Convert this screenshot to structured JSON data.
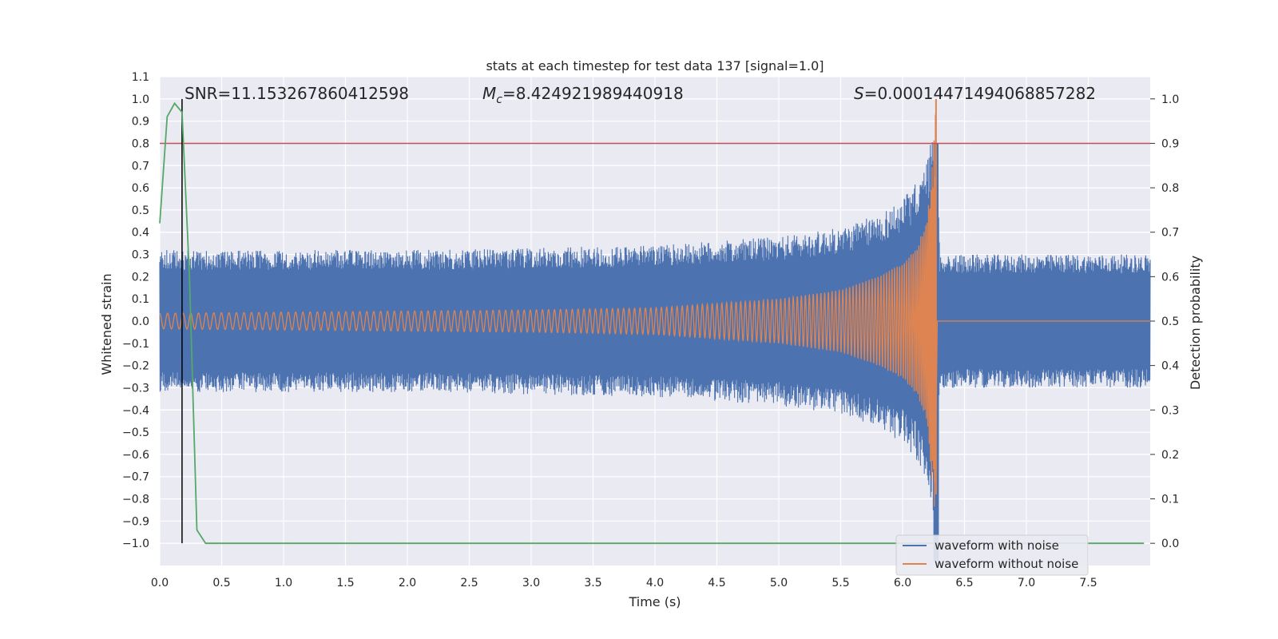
{
  "chart_data": {
    "type": "line",
    "title": "stats at each timestep for test data 137 [signal=1.0]",
    "xlabel": "Time (s)",
    "ylabel": "Whitened strain",
    "y2label": "Detection probability",
    "xlim": [
      0.0,
      8.0
    ],
    "ylim": [
      -1.1,
      1.1
    ],
    "y2lim": [
      -0.05,
      1.05
    ],
    "xticks": [
      "0.0",
      "0.5",
      "1.0",
      "1.5",
      "2.0",
      "2.5",
      "3.0",
      "3.5",
      "4.0",
      "4.5",
      "5.0",
      "5.5",
      "6.0",
      "6.5",
      "7.0",
      "7.5"
    ],
    "yticks": [
      "1.1",
      "1.0",
      "0.9",
      "0.8",
      "0.7",
      "0.6",
      "0.5",
      "0.4",
      "0.3",
      "0.2",
      "0.1",
      "0.0",
      "−0.1",
      "−0.2",
      "−0.3",
      "−0.4",
      "−0.5",
      "−0.6",
      "−0.7",
      "−0.8",
      "−0.9",
      "−1.0"
    ],
    "y2ticks": [
      "1.0",
      "0.9",
      "0.8",
      "0.7",
      "0.6",
      "0.5",
      "0.4",
      "0.3",
      "0.2",
      "0.1",
      "0.0"
    ],
    "grid": true,
    "legend_position": "bottom-right",
    "annotations": {
      "snr": "SNR=11.153267860412598",
      "mc_symbol": "M",
      "mc_sub": "c",
      "mc_value": "=8.424921989440918",
      "s_symbol": "S",
      "s_value": "=0.00014471494068857282"
    },
    "merger_time": 6.27,
    "detection_time": 0.18,
    "threshold_probability": 0.9,
    "series": [
      {
        "name": "waveform with noise",
        "color": "#4c72b0",
        "envelope_x": [
          0.0,
          1.0,
          2.0,
          3.0,
          4.0,
          5.0,
          5.5,
          5.8,
          6.0,
          6.1,
          6.2,
          6.27,
          6.3,
          7.0,
          8.0
        ],
        "envelope_y": [
          0.32,
          0.32,
          0.32,
          0.33,
          0.34,
          0.38,
          0.42,
          0.48,
          0.55,
          0.62,
          0.72,
          1.0,
          0.3,
          0.3,
          0.3
        ]
      },
      {
        "name": "waveform without noise",
        "color": "#dd8452",
        "envelope_x": [
          0.0,
          1.0,
          2.0,
          3.0,
          4.0,
          4.5,
          5.0,
          5.5,
          5.8,
          6.0,
          6.1,
          6.2,
          6.27,
          6.28,
          8.0
        ],
        "envelope_y": [
          0.035,
          0.04,
          0.045,
          0.05,
          0.06,
          0.08,
          0.1,
          0.14,
          0.2,
          0.26,
          0.32,
          0.45,
          0.98,
          0.0,
          0.0
        ]
      },
      {
        "name": "detection probability",
        "color": "#55a868",
        "x": [
          0.0,
          0.06,
          0.12,
          0.18,
          0.24,
          0.3,
          0.37,
          1.0,
          2.0,
          3.0,
          4.0,
          5.0,
          6.0,
          7.0,
          7.95
        ],
        "y": [
          0.72,
          0.96,
          0.99,
          0.97,
          0.6,
          0.03,
          0.0,
          0.0,
          0.0,
          0.0,
          0.0,
          0.0,
          0.0,
          0.0,
          0.0
        ]
      }
    ],
    "colors": {
      "background": "#eaeaf2",
      "grid": "#ffffff",
      "threshold": "#c44e52",
      "detection_line": "#000000"
    }
  }
}
